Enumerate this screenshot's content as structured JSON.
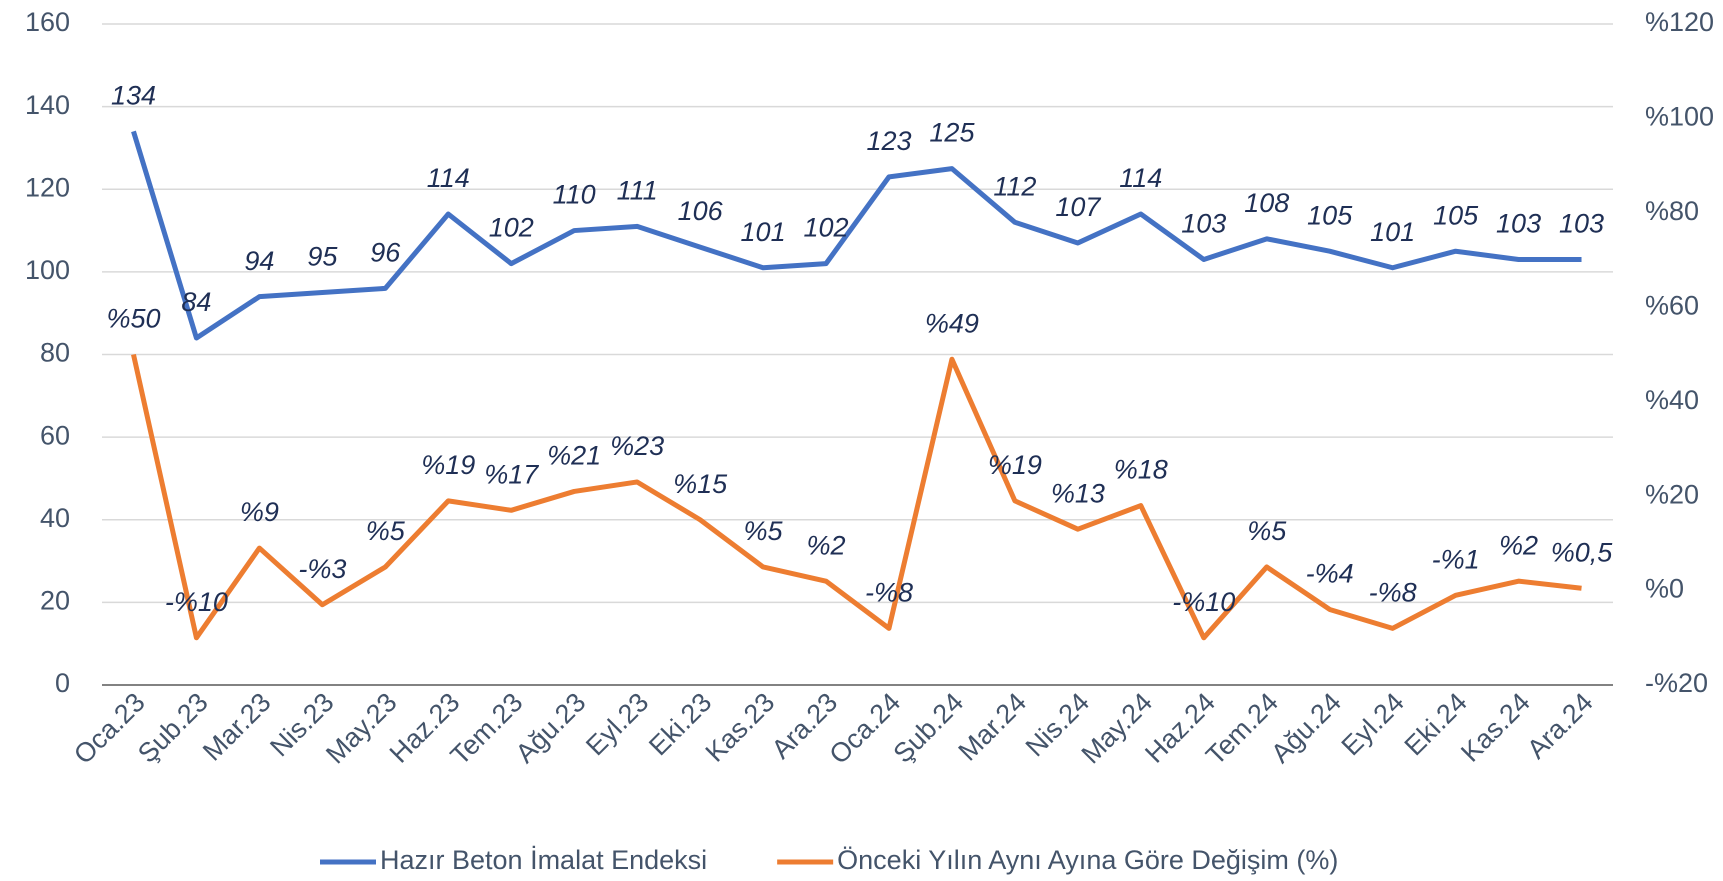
{
  "chart_data": {
    "type": "line",
    "categories": [
      "Oca.23",
      "Şub.23",
      "Mar.23",
      "Nis.23",
      "May.23",
      "Haz.23",
      "Tem.23",
      "Ağu.23",
      "Eyl.23",
      "Eki.23",
      "Kas.23",
      "Ara.23",
      "Oca.24",
      "Şub.24",
      "Mar.24",
      "Nis.24",
      "May.24",
      "Haz.24",
      "Tem.24",
      "Ağu.24",
      "Eyl.24",
      "Eki.24",
      "Kas.24",
      "Ara.24"
    ],
    "series": [
      {
        "name": "Hazır Beton İmalat Endeksi",
        "color": "#4472c4",
        "values": [
          134,
          84,
          94,
          95,
          96,
          114,
          102,
          110,
          111,
          106,
          101,
          102,
          123,
          125,
          112,
          107,
          114,
          103,
          108,
          105,
          101,
          105,
          103,
          103
        ]
      },
      {
        "name": "Önceki Yılın Aynı Ayına Göre Değişim (%)",
        "color": "#ed7d31",
        "axis": "y2",
        "values": [
          50,
          -10,
          9,
          -3,
          5,
          19,
          17,
          21,
          23,
          15,
          5,
          2,
          -8,
          49,
          19,
          13,
          18,
          -10,
          5,
          -4,
          -8,
          -1,
          2,
          0.5
        ],
        "value_labels": [
          "%50",
          "-%10",
          "%9",
          "-%3",
          "%5",
          "%19",
          "%17",
          "%21",
          "%23",
          "%15",
          "%5",
          "%2",
          "-%8",
          "%49",
          "%19",
          "%13",
          "%18",
          "-%10",
          "%5",
          "-%4",
          "-%8",
          "-%1",
          "%2",
          "%0,5"
        ]
      }
    ],
    "ylim": [
      0,
      160
    ],
    "yticks": [
      0,
      20,
      40,
      60,
      80,
      100,
      120,
      140,
      160
    ],
    "y2lim": [
      -20,
      120
    ],
    "y2ticks": [
      {
        "value": -20,
        "label": "-%20"
      },
      {
        "value": 0,
        "label": "%0"
      },
      {
        "value": 20,
        "label": "%20"
      },
      {
        "value": 40,
        "label": "%40"
      },
      {
        "value": 60,
        "label": "%60"
      },
      {
        "value": 80,
        "label": "%80"
      },
      {
        "value": 100,
        "label": "%100"
      },
      {
        "value": 120,
        "label": "%120"
      }
    ],
    "grid": true
  }
}
